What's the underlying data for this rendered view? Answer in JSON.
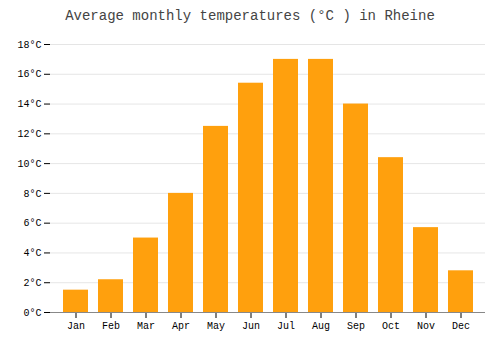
{
  "chart_data": {
    "type": "bar",
    "title": "Average monthly temperatures (°C ) in Rheine",
    "categories": [
      "Jan",
      "Feb",
      "Mar",
      "Apr",
      "May",
      "Jun",
      "Jul",
      "Aug",
      "Sep",
      "Oct",
      "Nov",
      "Dec"
    ],
    "values": [
      1.5,
      2.2,
      5.0,
      8.0,
      12.5,
      15.4,
      17.0,
      17.0,
      14.0,
      10.4,
      5.7,
      2.8
    ],
    "color": "#FFA00D",
    "ylim": [
      0,
      18
    ],
    "yticks": [
      {
        "value": 0,
        "label": "0°C"
      },
      {
        "value": 2,
        "label": "2°C"
      },
      {
        "value": 4,
        "label": "4°C"
      },
      {
        "value": 6,
        "label": "6°C"
      },
      {
        "value": 8,
        "label": "8°C"
      },
      {
        "value": 10,
        "label": "10°C"
      },
      {
        "value": 12,
        "label": "12°C"
      },
      {
        "value": 14,
        "label": "14°C"
      },
      {
        "value": 16,
        "label": "16°C"
      },
      {
        "value": 18,
        "label": "18°C"
      }
    ],
    "grid": true
  }
}
